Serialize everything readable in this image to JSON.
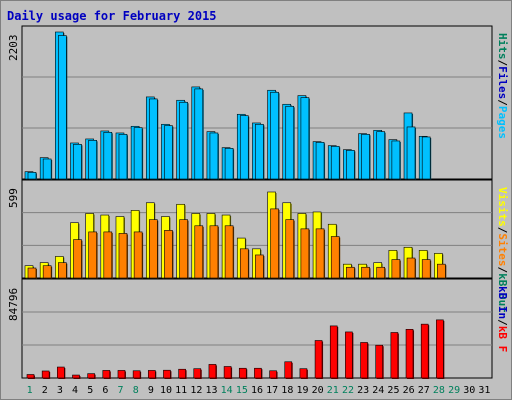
{
  "chart_data": {
    "type": "bar",
    "title": "Daily usage for February 2015",
    "categories": [
      "1",
      "2",
      "3",
      "4",
      "5",
      "6",
      "7",
      "8",
      "9",
      "10",
      "11",
      "12",
      "13",
      "14",
      "15",
      "16",
      "17",
      "18",
      "19",
      "20",
      "21",
      "22",
      "23",
      "24",
      "25",
      "26",
      "27",
      "28",
      "29",
      "30",
      "31"
    ],
    "weekend_days": [
      1,
      7,
      8,
      14,
      15,
      21,
      22,
      28,
      29
    ],
    "highlight_day": 28,
    "colors": {
      "pages": "#0080ff",
      "files": "#00c0ff",
      "hits": "#00805c",
      "visits": "#ffff00",
      "sites": "#ff8000",
      "kb_in": "#0000c0",
      "kb_out": "#00805c",
      "kb_f": "#ff0000",
      "grid": "#808080",
      "background": "#c0c0c0",
      "title": "#0000c0",
      "weekend_label": "#00805c"
    },
    "panels": [
      {
        "id": "hits",
        "ymax_label": "2203",
        "ylim": [
          0,
          2203
        ],
        "right_label": [
          {
            "text": "Hits",
            "color": "#00805c"
          },
          {
            "text": "/",
            "color": "#000000"
          },
          {
            "text": "Files",
            "color": "#0000c0"
          },
          {
            "text": "/",
            "color": "#000000"
          },
          {
            "text": "Pages",
            "color": "#00c0ff"
          }
        ],
        "series": [
          {
            "name": "Hits",
            "values": [
              110,
              320,
              2203,
              540,
              600,
              720,
              690,
              790,
              1230,
              820,
              1180,
              1380,
              710,
              470,
              970,
              840,
              1330,
              1120,
              1250,
              560,
              500,
              440,
              680,
              730,
              590,
              990,
              640,
              0,
              0,
              0,
              0
            ]
          },
          {
            "name": "Files",
            "values": [
              100,
              300,
              2150,
              520,
              580,
              700,
              670,
              770,
              1200,
              800,
              1150,
              1350,
              690,
              460,
              950,
              820,
              1300,
              1090,
              1220,
              550,
              490,
              430,
              670,
              710,
              570,
              780,
              630,
              0,
              0,
              0,
              0
            ]
          }
        ]
      },
      {
        "id": "visits",
        "ymax_label": "599",
        "ylim": [
          0,
          599
        ],
        "right_label": [
          {
            "text": "Visits",
            "color": "#ffff00"
          },
          {
            "text": "/",
            "color": "#000000"
          },
          {
            "text": "Sites",
            "color": "#ff8000"
          },
          {
            "text": "/",
            "color": "#000000"
          },
          {
            "text": "kB Out",
            "color": "#00805c"
          }
        ],
        "series": [
          {
            "name": "Visits",
            "values": [
              80,
              100,
              140,
              360,
              420,
              410,
              400,
              440,
              490,
              400,
              480,
              420,
              420,
              410,
              260,
              190,
              560,
              490,
              420,
              430,
              350,
              90,
              90,
              100,
              180,
              200,
              180,
              160,
              0,
              0,
              0
            ]
          },
          {
            "name": "Sites",
            "values": [
              65,
              80,
              100,
              250,
              300,
              300,
              290,
              300,
              380,
              310,
              380,
              340,
              340,
              340,
              190,
              150,
              450,
              380,
              320,
              320,
              270,
              70,
              70,
              70,
              120,
              130,
              120,
              90,
              0,
              0,
              0
            ]
          }
        ]
      },
      {
        "id": "kbytes",
        "ymax_label": "84796",
        "ylim": [
          0,
          84796
        ],
        "right_label": [
          {
            "text": "kB In",
            "color": "#0000c0"
          },
          {
            "text": "/",
            "color": "#000000"
          },
          {
            "text": "kB F",
            "color": "#ff0000"
          }
        ],
        "series": [
          {
            "name": "kB F",
            "values": [
              3200,
              6400,
              10000,
              2700,
              4000,
              6900,
              6900,
              6600,
              6900,
              7100,
              8000,
              8500,
              12400,
              10500,
              8900,
              8900,
              6600,
              14800,
              8500,
              34200,
              47500,
              42000,
              32400,
              29900,
              41500,
              44400,
              49100,
              53000,
              0,
              0,
              0
            ]
          }
        ]
      }
    ]
  }
}
